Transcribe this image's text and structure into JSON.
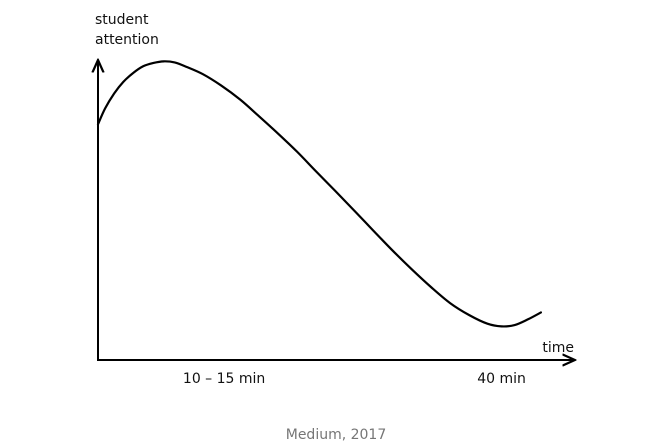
{
  "chart_data": {
    "type": "line",
    "title": "",
    "ylabel_lines": [
      "student",
      "attention"
    ],
    "xlabel": "time",
    "x_ticks": [
      {
        "x": 12.5,
        "label": "10 – 15 min"
      },
      {
        "x": 40,
        "label": "40 min"
      }
    ],
    "xlim": [
      0,
      45
    ],
    "ylim": [
      0,
      100
    ],
    "axis_y_ticks_shown": false,
    "grid": false,
    "legend": "none",
    "line_color": "#000000",
    "series": [
      {
        "x": [
          0,
          0.7,
          1.6,
          2.5,
          3.5,
          4.5,
          5.5,
          6.5,
          7.6,
          8.8,
          10.4,
          12.2,
          14.1,
          15.9,
          17.8,
          19.7,
          21.6,
          23.5,
          25.4,
          27.3,
          29.2,
          31.1,
          33.0,
          34.9,
          36.8,
          38.6,
          40.0,
          41.3,
          42.6,
          43.9
        ],
        "y": [
          76.0,
          81.9,
          87.5,
          91.8,
          95.2,
          97.7,
          98.9,
          99.5,
          99.1,
          97.4,
          94.7,
          90.5,
          85.2,
          79.2,
          72.7,
          65.9,
          58.5,
          51.2,
          43.8,
          36.3,
          28.9,
          21.9,
          15.3,
          9.3,
          4.8,
          1.6,
          0.6,
          1.1,
          3.2,
          5.8
        ]
      }
    ]
  },
  "caption": "Medium, 2017"
}
